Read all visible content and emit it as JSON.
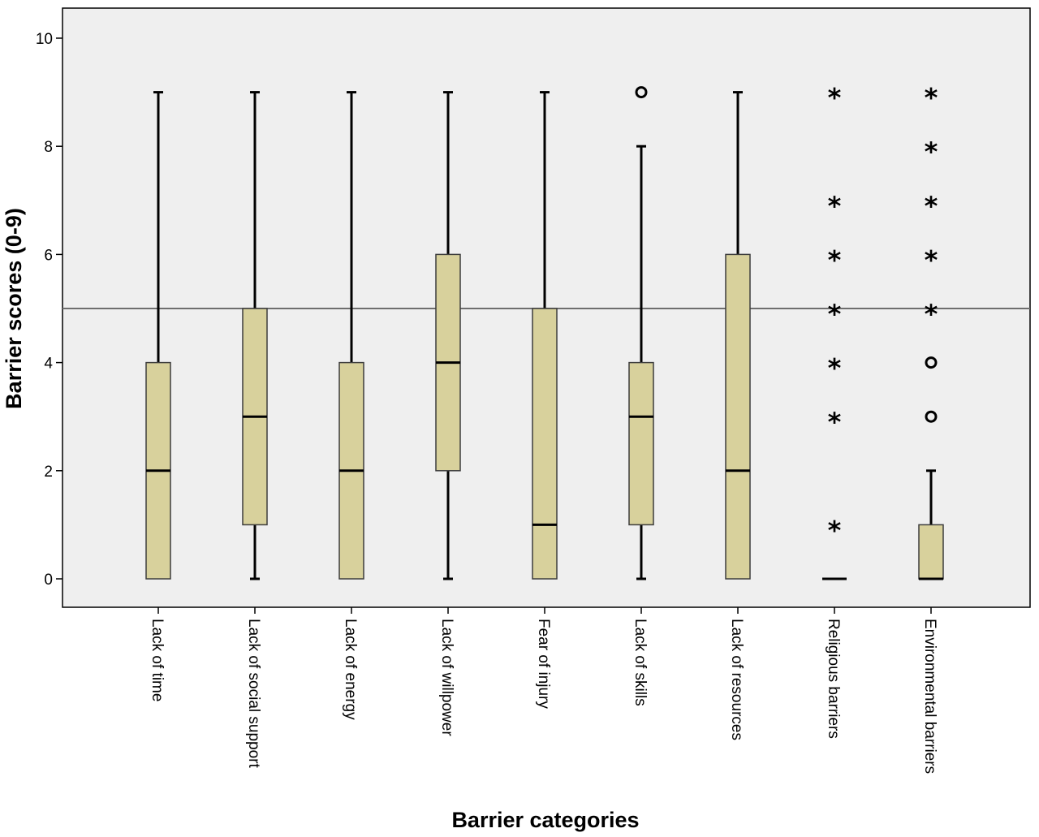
{
  "chart_data": {
    "type": "boxplot",
    "title": "",
    "xlabel": "Barrier categories",
    "ylabel": "Barrier scores (0-9)",
    "ylim": [
      -0.55,
      10.55
    ],
    "yticks": [
      0,
      2,
      4,
      6,
      8,
      10
    ],
    "reference_line": 5,
    "grid": false,
    "colors": {
      "plot_background": "#efefef",
      "box_fill": "#d8d19c",
      "box_stroke": "#3d3d3d",
      "reference_line": "#6e6e6e"
    },
    "categories": [
      "Lack  of time",
      "Lack of social support",
      "Lack of energy",
      "Lack of willpower",
      "Fear of injury",
      "Lack of skills",
      "Lack of resources",
      "Religious barriers",
      "Environmental barriers"
    ],
    "boxes": [
      {
        "whisker_low": 0,
        "q1": 0,
        "median": 2,
        "q3": 4,
        "whisker_high": 9,
        "outliers": [],
        "extremes": []
      },
      {
        "whisker_low": 0,
        "q1": 1,
        "median": 3,
        "q3": 5,
        "whisker_high": 9,
        "outliers": [],
        "extremes": []
      },
      {
        "whisker_low": 0,
        "q1": 0,
        "median": 2,
        "q3": 4,
        "whisker_high": 9,
        "outliers": [],
        "extremes": []
      },
      {
        "whisker_low": 0,
        "q1": 2,
        "median": 4,
        "q3": 6,
        "whisker_high": 9,
        "outliers": [],
        "extremes": []
      },
      {
        "whisker_low": 0,
        "q1": 0,
        "median": 1,
        "q3": 5,
        "whisker_high": 9,
        "outliers": [],
        "extremes": []
      },
      {
        "whisker_low": 0,
        "q1": 1,
        "median": 3,
        "q3": 4,
        "whisker_high": 8,
        "outliers": [
          9
        ],
        "extremes": []
      },
      {
        "whisker_low": 0,
        "q1": 0,
        "median": 2,
        "q3": 6,
        "whisker_high": 9,
        "outliers": [],
        "extremes": []
      },
      {
        "whisker_low": 0,
        "q1": 0,
        "median": 0,
        "q3": 0,
        "whisker_high": 0,
        "outliers": [],
        "extremes": [
          1,
          3,
          4,
          5,
          6,
          7,
          9
        ]
      },
      {
        "whisker_low": 0,
        "q1": 0,
        "median": 0,
        "q3": 1,
        "whisker_high": 2,
        "outliers": [
          3,
          4
        ],
        "extremes": [
          5,
          6,
          7,
          8,
          9
        ]
      }
    ]
  }
}
